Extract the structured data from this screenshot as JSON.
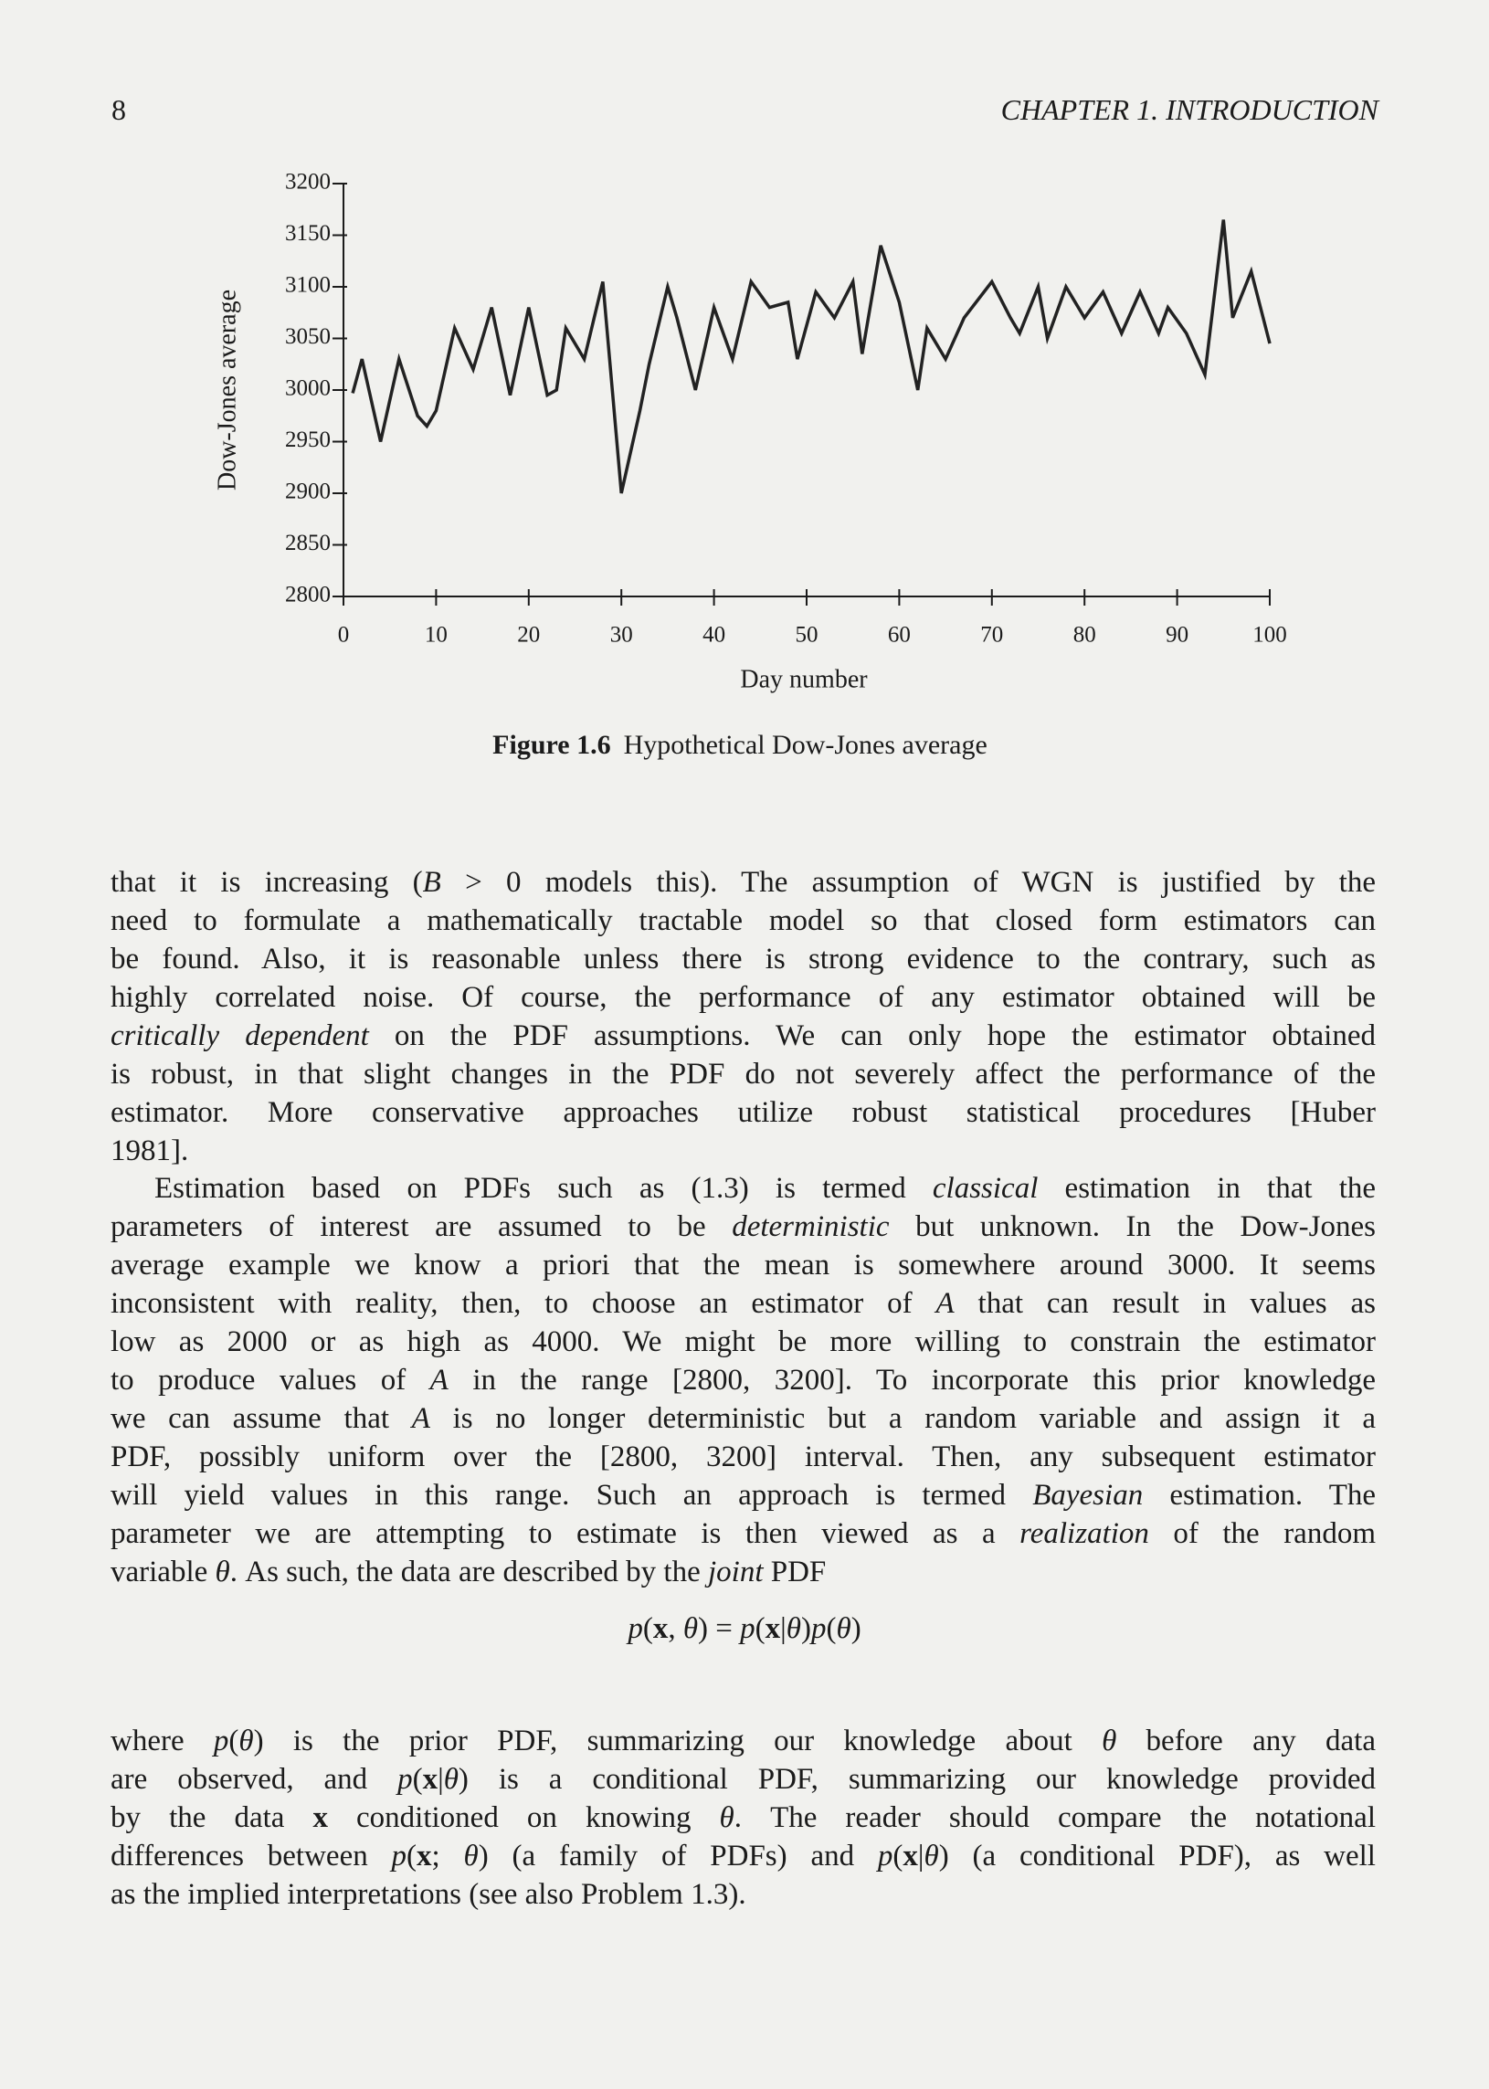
{
  "header": {
    "page_number": "8",
    "running_head": "CHAPTER 1. INTRODUCTION"
  },
  "chart_data": {
    "type": "line",
    "figure_label": "Figure 1.6",
    "title": "Hypothetical Dow-Jones average",
    "xlabel": "Day number",
    "ylabel": "Dow-Jones average",
    "x": [
      1,
      2,
      4,
      6,
      8,
      9,
      10,
      12,
      14,
      16,
      18,
      20,
      22,
      23,
      24,
      26,
      28,
      30,
      32,
      33,
      35,
      36,
      38,
      40,
      42,
      44,
      46,
      48,
      49,
      51,
      53,
      55,
      56,
      58,
      60,
      62,
      63,
      65,
      67,
      70,
      72,
      73,
      75,
      76,
      78,
      80,
      82,
      84,
      86,
      88,
      89,
      91,
      93,
      95,
      96,
      98,
      100
    ],
    "values": [
      2997,
      3030,
      2950,
      3030,
      2975,
      2965,
      2980,
      3060,
      3020,
      3080,
      2995,
      3080,
      2995,
      3000,
      3060,
      3030,
      3105,
      2900,
      2980,
      3025,
      3100,
      3070,
      3000,
      3080,
      3030,
      3105,
      3080,
      3085,
      3030,
      3095,
      3070,
      3105,
      3035,
      3140,
      3085,
      3000,
      3060,
      3030,
      3070,
      3105,
      3070,
      3055,
      3100,
      3050,
      3100,
      3070,
      3095,
      3055,
      3095,
      3055,
      3080,
      3055,
      3015,
      3165,
      3070,
      3115,
      3045
    ],
    "color": "#222222",
    "xlim": [
      0,
      100
    ],
    "xticks": [
      0,
      10,
      20,
      30,
      40,
      50,
      60,
      70,
      80,
      90,
      100
    ],
    "ylim": [
      2800,
      3200
    ],
    "yticks": [
      2800,
      2850,
      2900,
      2950,
      3000,
      3050,
      3100,
      3150,
      3200
    ]
  },
  "body": {
    "paragraphs": [
      {
        "lines": [
          [
            "that it is increasing (",
            {
              "text": "B",
              "style": "italic"
            },
            " > 0 models this). The assumption of WGN is justified by the"
          ],
          [
            "need to formulate a mathematically tractable model so that closed form estimators can"
          ],
          [
            "be found. Also, it is reasonable unless there is strong evidence to the contrary, such as"
          ],
          [
            "highly correlated noise. Of course, the performance of any estimator obtained will be"
          ],
          [
            {
              "text": "critically dependent",
              "style": "italic"
            },
            " on the PDF assumptions. We can only hope the estimator obtained"
          ],
          [
            "is robust, in that slight changes in the PDF do not severely affect the performance of the"
          ],
          [
            "estimator. More conservative approaches utilize robust statistical procedures [Huber"
          ],
          [
            "1981]."
          ]
        ]
      },
      {
        "lines": [
          [
            "Estimation based on PDFs such as (1.3) is termed ",
            {
              "text": "classical",
              "style": "italic"
            },
            " estimation in that the"
          ],
          [
            "parameters of interest are assumed to be ",
            {
              "text": "deterministic",
              "style": "italic"
            },
            " but unknown. In the Dow-Jones"
          ],
          [
            "average example we know a priori that the mean is somewhere around 3000. It seems"
          ],
          [
            "inconsistent with reality, then, to choose an estimator of ",
            {
              "text": "A",
              "style": "italic"
            },
            " that can result in values as"
          ],
          [
            "low as 2000 or as high as 4000. We might be more willing to constrain the estimator"
          ],
          [
            "to produce values of ",
            {
              "text": "A",
              "style": "italic"
            },
            " in the range [2800, 3200]. To incorporate this prior knowledge"
          ],
          [
            "we can assume that ",
            {
              "text": "A",
              "style": "italic"
            },
            " is no longer deterministic but a random variable and assign it a"
          ],
          [
            "PDF, possibly uniform over the [2800, 3200] interval. Then, any subsequent estimator"
          ],
          [
            "will yield values in this range. Such an approach is termed ",
            {
              "text": "Bayesian",
              "style": "italic"
            },
            " estimation. The"
          ],
          [
            "parameter we are attempting to estimate is then viewed as a ",
            {
              "text": "realization",
              "style": "italic"
            },
            " of the random"
          ],
          [
            "variable ",
            {
              "text": "θ",
              "style": "italic"
            },
            ". As such, the data are described by the ",
            {
              "text": "joint",
              "style": "italic"
            },
            " PDF"
          ]
        ]
      },
      {
        "lines": [
          [
            "where ",
            {
              "text": "p",
              "style": "italic"
            },
            "(",
            {
              "text": "θ",
              "style": "italic"
            },
            ") is the prior PDF, summarizing our knowledge about ",
            {
              "text": "θ",
              "style": "italic"
            },
            " before any data"
          ],
          [
            "are observed, and ",
            {
              "text": "p",
              "style": "italic"
            },
            "(",
            {
              "text": "x",
              "style": "bold"
            },
            "|",
            {
              "text": "θ",
              "style": "italic"
            },
            ") is a conditional PDF, summarizing our knowledge provided"
          ],
          [
            "by the data ",
            {
              "text": "x",
              "style": "bold"
            },
            " conditioned on knowing ",
            {
              "text": "θ",
              "style": "italic"
            },
            ". The reader should compare the notational"
          ],
          [
            "differences between ",
            {
              "text": "p",
              "style": "italic"
            },
            "(",
            {
              "text": "x",
              "style": "bold"
            },
            "; ",
            {
              "text": "θ",
              "style": "italic"
            },
            ") (a family of PDFs) and ",
            {
              "text": "p",
              "style": "italic"
            },
            "(",
            {
              "text": "x",
              "style": "bold"
            },
            "|",
            {
              "text": "θ",
              "style": "italic"
            },
            ") (a conditional PDF), as well"
          ],
          [
            "as the implied interpretations (see also Problem 1.3)."
          ]
        ]
      }
    ],
    "equation": [
      {
        "text": "p",
        "style": "italic"
      },
      "(",
      {
        "text": "x",
        "style": "bold"
      },
      ", ",
      {
        "text": "θ",
        "style": "italic"
      },
      ") = ",
      {
        "text": "p",
        "style": "italic"
      },
      "(",
      {
        "text": "x",
        "style": "bold"
      },
      "|",
      {
        "text": "θ",
        "style": "italic"
      },
      ")",
      {
        "text": "p",
        "style": "italic"
      },
      "(",
      {
        "text": "θ",
        "style": "italic"
      },
      ")"
    ]
  }
}
